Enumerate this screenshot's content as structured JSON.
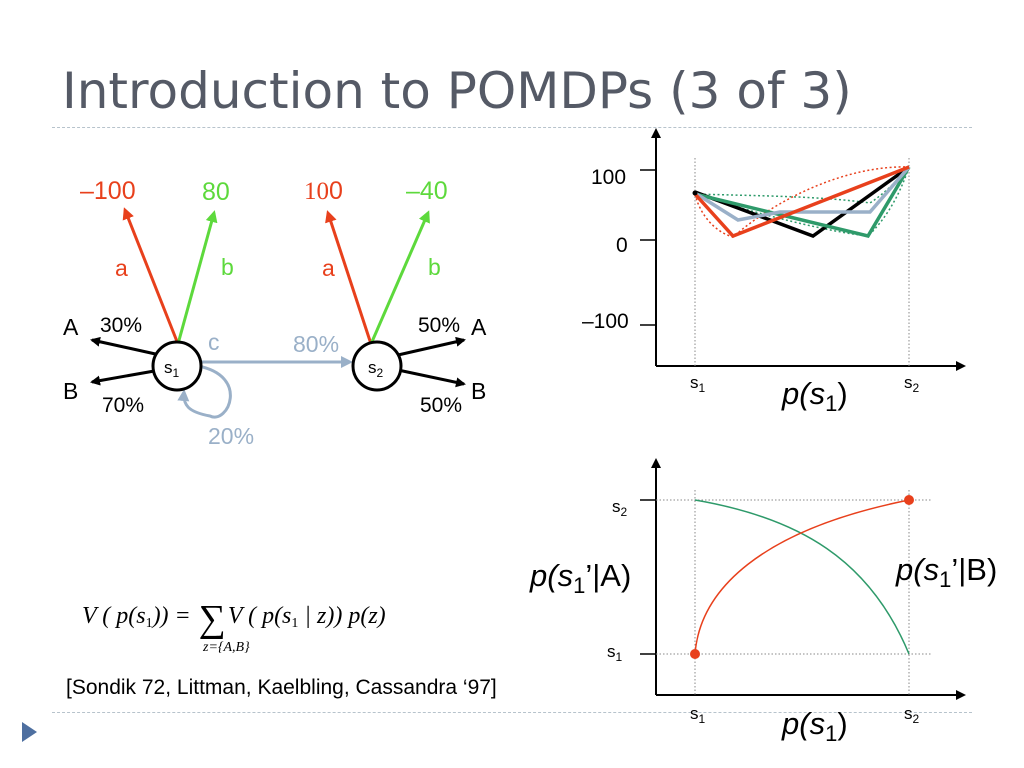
{
  "slide": {
    "title": "Introduction to POMDPs (3 of 3)",
    "citation": "[Sondik 72, Littman, Kaelbling, Cassandra ‘97]",
    "formula": {
      "lhs": "V ( p(s",
      "lhs_sub": "1",
      "lhs_end": ")) =",
      "sum": "∑",
      "rhs": "V ( p(s",
      "rhs_sub": "1",
      "rhs_end": " | z)) p(z)",
      "sum_range": "z={A,B}"
    }
  },
  "diagram": {
    "state1": {
      "label": "s",
      "sub": "1"
    },
    "state2": {
      "label": "s",
      "sub": "2"
    },
    "s1_rewards": {
      "a": "–100",
      "b": "80"
    },
    "s2_rewards": {
      "a_main": "10",
      "a_tail": "0",
      "b": "–40"
    },
    "action_a": "a",
    "action_b": "b",
    "action_c": "c",
    "obs_A": "A",
    "obs_B": "B",
    "s1_obs_A_pct": "30%",
    "s1_obs_B_pct": "70%",
    "s2_obs_A_pct": "50%",
    "s2_obs_B_pct": "50%",
    "c_to_s2_pct": "80%",
    "c_self_pct": "20%",
    "colors": {
      "a": "#e8401c",
      "b": "#5dd93c",
      "c": "#9ab0c8"
    }
  },
  "top_chart": {
    "y_ticks": [
      "100",
      "0",
      "–100"
    ],
    "x_left": {
      "label": "s",
      "sub": "1"
    },
    "x_right": {
      "label": "s",
      "sub": "2"
    },
    "x_axis_label": {
      "pre": "p(",
      "var": "s",
      "sub": "1",
      "post": ")"
    }
  },
  "bottom_chart": {
    "y_top": {
      "label": "s",
      "sub": "2"
    },
    "y_bottom": {
      "label": "s",
      "sub": "1"
    },
    "x_left": {
      "label": "s",
      "sub": "1"
    },
    "x_right": {
      "label": "s",
      "sub": "2"
    },
    "x_axis_label": {
      "pre": "p(",
      "var": "s",
      "sub": "1",
      "post": ")"
    },
    "curve_A_label": {
      "pre": "p(",
      "var": "s",
      "sub": "1",
      "post": "’|A)"
    },
    "curve_B_label": {
      "pre": "p(",
      "var": "s",
      "sub": "1",
      "post": "’|B)"
    }
  }
}
